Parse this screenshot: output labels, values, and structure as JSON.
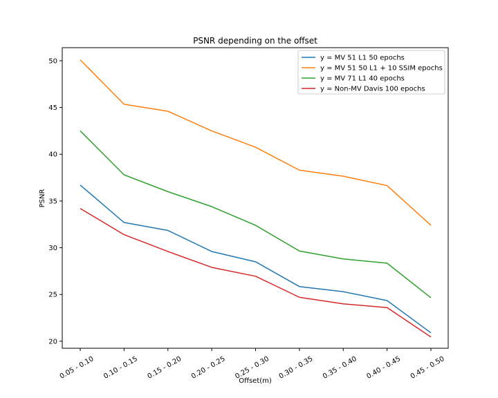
{
  "chart_data": {
    "type": "line",
    "title": "PSNR depending on the offset",
    "xlabel": "Offset(m)",
    "ylabel": "PSNR",
    "categories": [
      "0.05 - 0.10",
      "0.10 - 0.15",
      "0.15 - 0.20",
      "0.20 - 0.25",
      "0.25 - 0.30",
      "0.30 - 0.35",
      "0.35 - 0.40",
      "0.40 - 0.45",
      "0.45 - 0.50"
    ],
    "ylim": [
      19.25,
      51.4
    ],
    "yticks": [
      20,
      25,
      30,
      35,
      40,
      45,
      50
    ],
    "grid": false,
    "legend_position": "top-right",
    "series": [
      {
        "name": "y = MV 51 L1 50 epochs",
        "color": "#1f77b4",
        "values": [
          36.7,
          32.7,
          31.85,
          29.6,
          28.5,
          25.85,
          25.3,
          24.35,
          20.9
        ]
      },
      {
        "name": "y = MV 51 50 L1 + 10 SSIM epochs",
        "color": "#ff7f0e",
        "values": [
          50.1,
          45.35,
          44.6,
          42.5,
          40.75,
          38.3,
          37.65,
          36.65,
          32.4
        ]
      },
      {
        "name": "y = MV 71 L1 40 epochs",
        "color": "#2ca02c",
        "values": [
          42.5,
          37.8,
          36.0,
          34.4,
          32.4,
          29.65,
          28.8,
          28.35,
          24.65
        ]
      },
      {
        "name": "y = Non-MV Davis 100 epochs",
        "color": "#d62728",
        "values": [
          34.2,
          31.4,
          29.6,
          27.9,
          26.95,
          24.7,
          24.0,
          23.6,
          20.45
        ]
      }
    ]
  }
}
